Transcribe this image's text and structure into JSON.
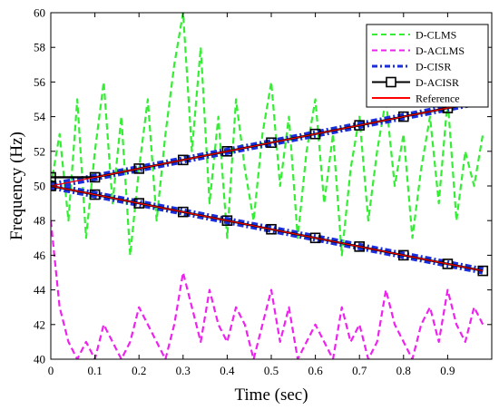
{
  "chart_data": {
    "type": "line",
    "title": "",
    "xlabel": "Time (sec)",
    "ylabel": "Frequency (Hz)",
    "xlim": [
      0,
      1
    ],
    "ylim": [
      40,
      60
    ],
    "xticks": [
      0,
      0.1,
      0.2,
      0.3,
      0.4,
      0.5,
      0.6,
      0.7,
      0.8,
      0.9
    ],
    "xtick_labels": [
      "0",
      "0.1",
      "0.2",
      "0.3",
      "0.4",
      "0.5",
      "0.6",
      "0.7",
      "0.8",
      "0.9"
    ],
    "yticks": [
      40,
      42,
      44,
      46,
      48,
      50,
      52,
      54,
      56,
      58,
      60
    ],
    "ytick_labels": [
      "40",
      "42",
      "44",
      "46",
      "48",
      "50",
      "52",
      "54",
      "56",
      "58",
      "60"
    ],
    "grid": false,
    "legend_position": "top-right",
    "series": [
      {
        "name": "D-CLMS",
        "color": "#33ee33",
        "style": "dashed",
        "x": [
          0,
          0.02,
          0.04,
          0.06,
          0.08,
          0.1,
          0.12,
          0.14,
          0.16,
          0.18,
          0.2,
          0.22,
          0.24,
          0.26,
          0.28,
          0.3,
          0.32,
          0.34,
          0.36,
          0.38,
          0.4,
          0.42,
          0.44,
          0.46,
          0.48,
          0.5,
          0.52,
          0.54,
          0.56,
          0.58,
          0.6,
          0.62,
          0.64,
          0.66,
          0.68,
          0.7,
          0.72,
          0.74,
          0.76,
          0.78,
          0.8,
          0.82,
          0.84,
          0.86,
          0.88,
          0.9,
          0.92,
          0.94,
          0.96,
          0.98
        ],
        "y": [
          50,
          53,
          48,
          55,
          47,
          52,
          56,
          49,
          54,
          46,
          51,
          55,
          48,
          53,
          57,
          60,
          52,
          58,
          49,
          54,
          47,
          55,
          51,
          48,
          53,
          56,
          50,
          54,
          47,
          52,
          55,
          49,
          53,
          46,
          51,
          54,
          48,
          52,
          55,
          50,
          53,
          47,
          51,
          54,
          49,
          55,
          48,
          52,
          50,
          53
        ]
      },
      {
        "name": "D-ACLMS",
        "color": "#ee22ee",
        "style": "dashed",
        "x": [
          0,
          0.02,
          0.04,
          0.06,
          0.08,
          0.1,
          0.12,
          0.14,
          0.16,
          0.18,
          0.2,
          0.22,
          0.24,
          0.26,
          0.28,
          0.3,
          0.32,
          0.34,
          0.36,
          0.38,
          0.4,
          0.42,
          0.44,
          0.46,
          0.48,
          0.5,
          0.52,
          0.54,
          0.56,
          0.58,
          0.6,
          0.62,
          0.64,
          0.66,
          0.68,
          0.7,
          0.72,
          0.74,
          0.76,
          0.78,
          0.8,
          0.82,
          0.84,
          0.86,
          0.88,
          0.9,
          0.92,
          0.94,
          0.96,
          0.98
        ],
        "y": [
          48,
          43,
          41,
          40,
          41,
          40,
          42,
          41,
          40,
          41,
          43,
          42,
          41,
          40,
          42,
          45,
          43,
          41,
          44,
          42,
          41,
          43,
          42,
          40,
          42,
          44,
          41,
          43,
          40,
          41,
          42,
          41,
          40,
          43,
          41,
          42,
          40,
          41,
          44,
          42,
          41,
          40,
          42,
          43,
          41,
          44,
          42,
          41,
          43,
          42
        ]
      },
      {
        "name": "D-CISR",
        "color": "#1a2edb",
        "style": "dash-dot",
        "x": [
          0,
          0.1,
          0.2,
          0.3,
          0.4,
          0.5,
          0.6,
          0.7,
          0.8,
          0.9,
          0.98
        ],
        "y_upper": [
          50,
          50.5,
          51,
          51.5,
          52,
          52.5,
          53,
          53.5,
          54,
          54.5,
          54.9
        ],
        "y_lower": [
          50,
          49.5,
          49,
          48.5,
          48,
          47.5,
          47,
          46.5,
          46,
          45.5,
          45.1
        ]
      },
      {
        "name": "D-ACISR",
        "color": "#000000",
        "style": "solid-square-marker",
        "x": [
          0,
          0.1,
          0.2,
          0.3,
          0.4,
          0.5,
          0.6,
          0.7,
          0.8,
          0.9,
          0.98
        ],
        "y_upper": [
          50.5,
          50.5,
          51,
          51.5,
          52,
          52.5,
          53,
          53.5,
          54,
          54.5,
          54.9
        ],
        "y_lower": [
          50,
          49.5,
          49,
          48.5,
          48,
          47.5,
          47,
          46.5,
          46,
          45.5,
          45.1
        ]
      },
      {
        "name": "Reference",
        "color": "#ff0000",
        "style": "solid",
        "x": [
          0,
          0.98
        ],
        "y_upper": [
          50,
          54.9
        ],
        "y_lower": [
          50,
          45.1
        ]
      }
    ]
  }
}
